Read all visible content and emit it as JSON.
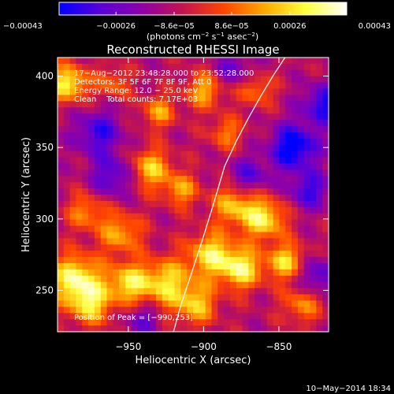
{
  "chart_data": {
    "type": "heatmap",
    "title": "Reconstructed RHESSI Image",
    "xlabel": "Heliocentric X (arcsec)",
    "ylabel": "Heliocentric Y (arcsec)",
    "xlim": [
      -997,
      -817
    ],
    "ylim": [
      221,
      413
    ],
    "xticks": [
      -950,
      -900,
      -850
    ],
    "xtick_labels": [
      "−950",
      "−900",
      "−850"
    ],
    "yticks": [
      250,
      300,
      350,
      400
    ],
    "ytick_labels": [
      "250",
      "300",
      "350",
      "400"
    ],
    "colorbar": {
      "min": -0.00043,
      "max": 0.00043,
      "ticks": [
        -0.00043,
        -0.00026,
        -8.6e-05,
        8.6e-05,
        0.00026,
        0.00043
      ],
      "tick_labels": [
        "−0.00043",
        "−0.00026",
        "−8.6e−05",
        "8.6e−05",
        "0.00026",
        "0.00043"
      ],
      "unit_parts": [
        "(photons cm",
        "−2",
        " s",
        "−1",
        " asec",
        "−2",
        ")"
      ]
    },
    "annotations": [
      "17−Aug−2012 23:48:28.000 to 23:52:28.000",
      "Detectors: 3F 5F 6F 7F 8F 9F, Att 0",
      "Energy Range: 12.0 − 25.0 keV",
      "Clean    Total counts: 7.17E+03"
    ],
    "peak_label": "Position of Peak = [−990,253]",
    "limb_curve": {
      "x": [
        -920,
        -915,
        -908,
        -900,
        -893,
        -886,
        -878,
        -870,
        -862,
        -854,
        -846
      ],
      "y": [
        221,
        240,
        262,
        288,
        312,
        337,
        355,
        371,
        386,
        400,
        413
      ]
    },
    "grid": false,
    "colormap": [
      "#0000ff",
      "#5a00d8",
      "#8e00a8",
      "#c21450",
      "#ff4400",
      "#ffaa00",
      "#ffff40",
      "#ffffff"
    ],
    "hot_spots": [
      {
        "x": -985,
        "y": 258,
        "amp": 1.0,
        "r": 12
      },
      {
        "x": -975,
        "y": 240,
        "amp": 0.75,
        "r": 10
      },
      {
        "x": -990,
        "y": 395,
        "amp": 0.95,
        "r": 9
      },
      {
        "x": -978,
        "y": 305,
        "amp": 0.55,
        "r": 9
      },
      {
        "x": -955,
        "y": 290,
        "amp": 0.65,
        "r": 10
      },
      {
        "x": -950,
        "y": 255,
        "amp": 0.8,
        "r": 10
      },
      {
        "x": -935,
        "y": 335,
        "amp": 0.75,
        "r": 10
      },
      {
        "x": -930,
        "y": 375,
        "amp": 0.6,
        "r": 8
      },
      {
        "x": -925,
        "y": 255,
        "amp": 0.8,
        "r": 12
      },
      {
        "x": -905,
        "y": 240,
        "amp": 0.7,
        "r": 10
      },
      {
        "x": -895,
        "y": 275,
        "amp": 0.85,
        "r": 11
      },
      {
        "x": -880,
        "y": 310,
        "amp": 0.7,
        "r": 10
      },
      {
        "x": -875,
        "y": 265,
        "amp": 0.9,
        "r": 10
      },
      {
        "x": -860,
        "y": 300,
        "amp": 0.9,
        "r": 10
      },
      {
        "x": -845,
        "y": 270,
        "amp": 0.8,
        "r": 9
      },
      {
        "x": -900,
        "y": 390,
        "amp": 0.65,
        "r": 9
      },
      {
        "x": -885,
        "y": 360,
        "amp": 0.5,
        "r": 8
      },
      {
        "x": -835,
        "y": 240,
        "amp": 0.55,
        "r": 9
      },
      {
        "x": -865,
        "y": 390,
        "amp": 0.5,
        "r": 8
      },
      {
        "x": -960,
        "y": 395,
        "amp": 0.45,
        "r": 8
      },
      {
        "x": -915,
        "y": 320,
        "amp": 0.6,
        "r": 8
      }
    ],
    "cold_spots": [
      {
        "x": -840,
        "y": 350,
        "amp": 0.9,
        "r": 11
      },
      {
        "x": -820,
        "y": 380,
        "amp": 0.7,
        "r": 10
      },
      {
        "x": -830,
        "y": 320,
        "amp": 0.6,
        "r": 9
      },
      {
        "x": -970,
        "y": 360,
        "amp": 0.6,
        "r": 11
      },
      {
        "x": -960,
        "y": 330,
        "amp": 0.55,
        "r": 10
      },
      {
        "x": -870,
        "y": 330,
        "amp": 0.5,
        "r": 9
      },
      {
        "x": -825,
        "y": 260,
        "amp": 0.55,
        "r": 9
      },
      {
        "x": -940,
        "y": 230,
        "amp": 0.45,
        "r": 8
      },
      {
        "x": -880,
        "y": 405,
        "amp": 0.45,
        "r": 8
      }
    ]
  },
  "footer": {
    "timestamp": "10−May−2014 18:34"
  }
}
